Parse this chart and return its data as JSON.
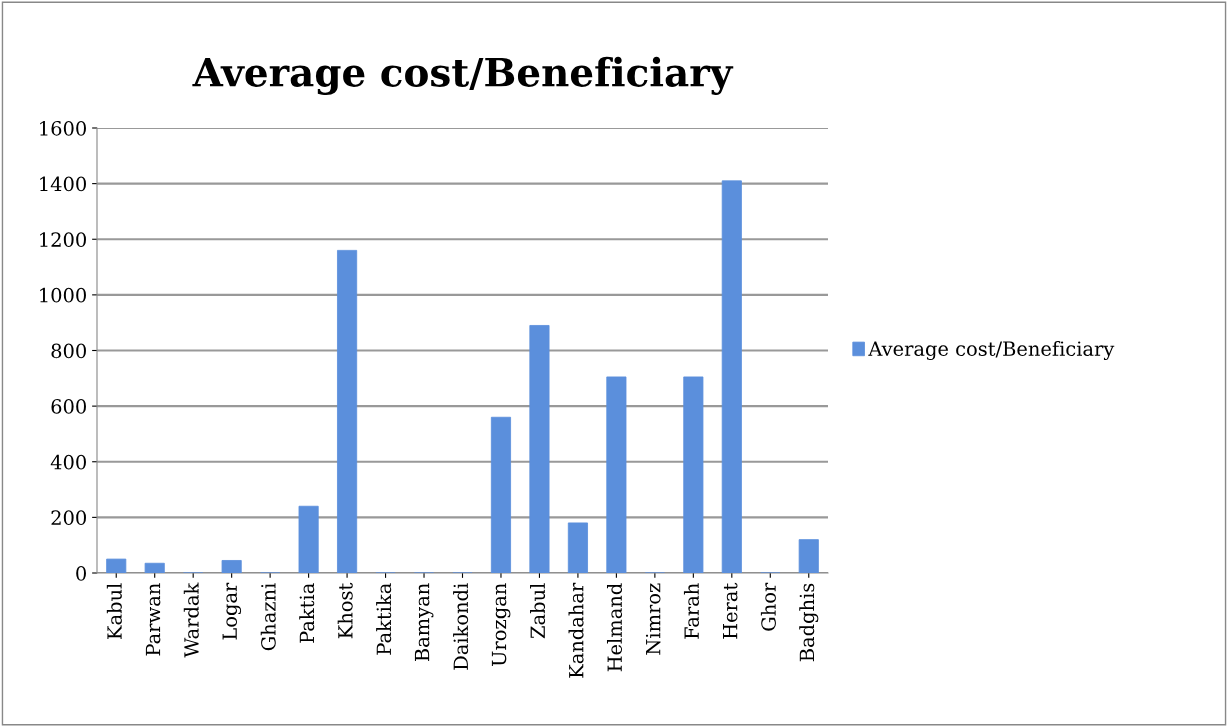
{
  "chart_data": {
    "type": "bar",
    "title": "Average cost/Beneficiary",
    "categories": [
      "Kabul",
      "Parwan",
      "Wardak",
      "Logar",
      "Ghazni",
      "Paktia",
      "Khost",
      "Paktika",
      "Bamyan",
      "Daikondi",
      "Urozgan",
      "Zabul",
      "Kandahar",
      "Helmand",
      "Nimroz",
      "Farah",
      "Herat",
      "Ghor",
      "Badghis"
    ],
    "series": [
      {
        "name": "Average cost/Beneficiary",
        "color": "#5b8fdc",
        "values": [
          50,
          35,
          0,
          45,
          0,
          240,
          1160,
          0,
          0,
          0,
          560,
          890,
          180,
          705,
          0,
          705,
          1410,
          0,
          120
        ]
      }
    ],
    "ylim": [
      0,
      1600
    ],
    "yticks": [
      0,
      200,
      400,
      600,
      800,
      1000,
      1200,
      1400,
      1600
    ],
    "grid": "y",
    "legend": "right"
  }
}
